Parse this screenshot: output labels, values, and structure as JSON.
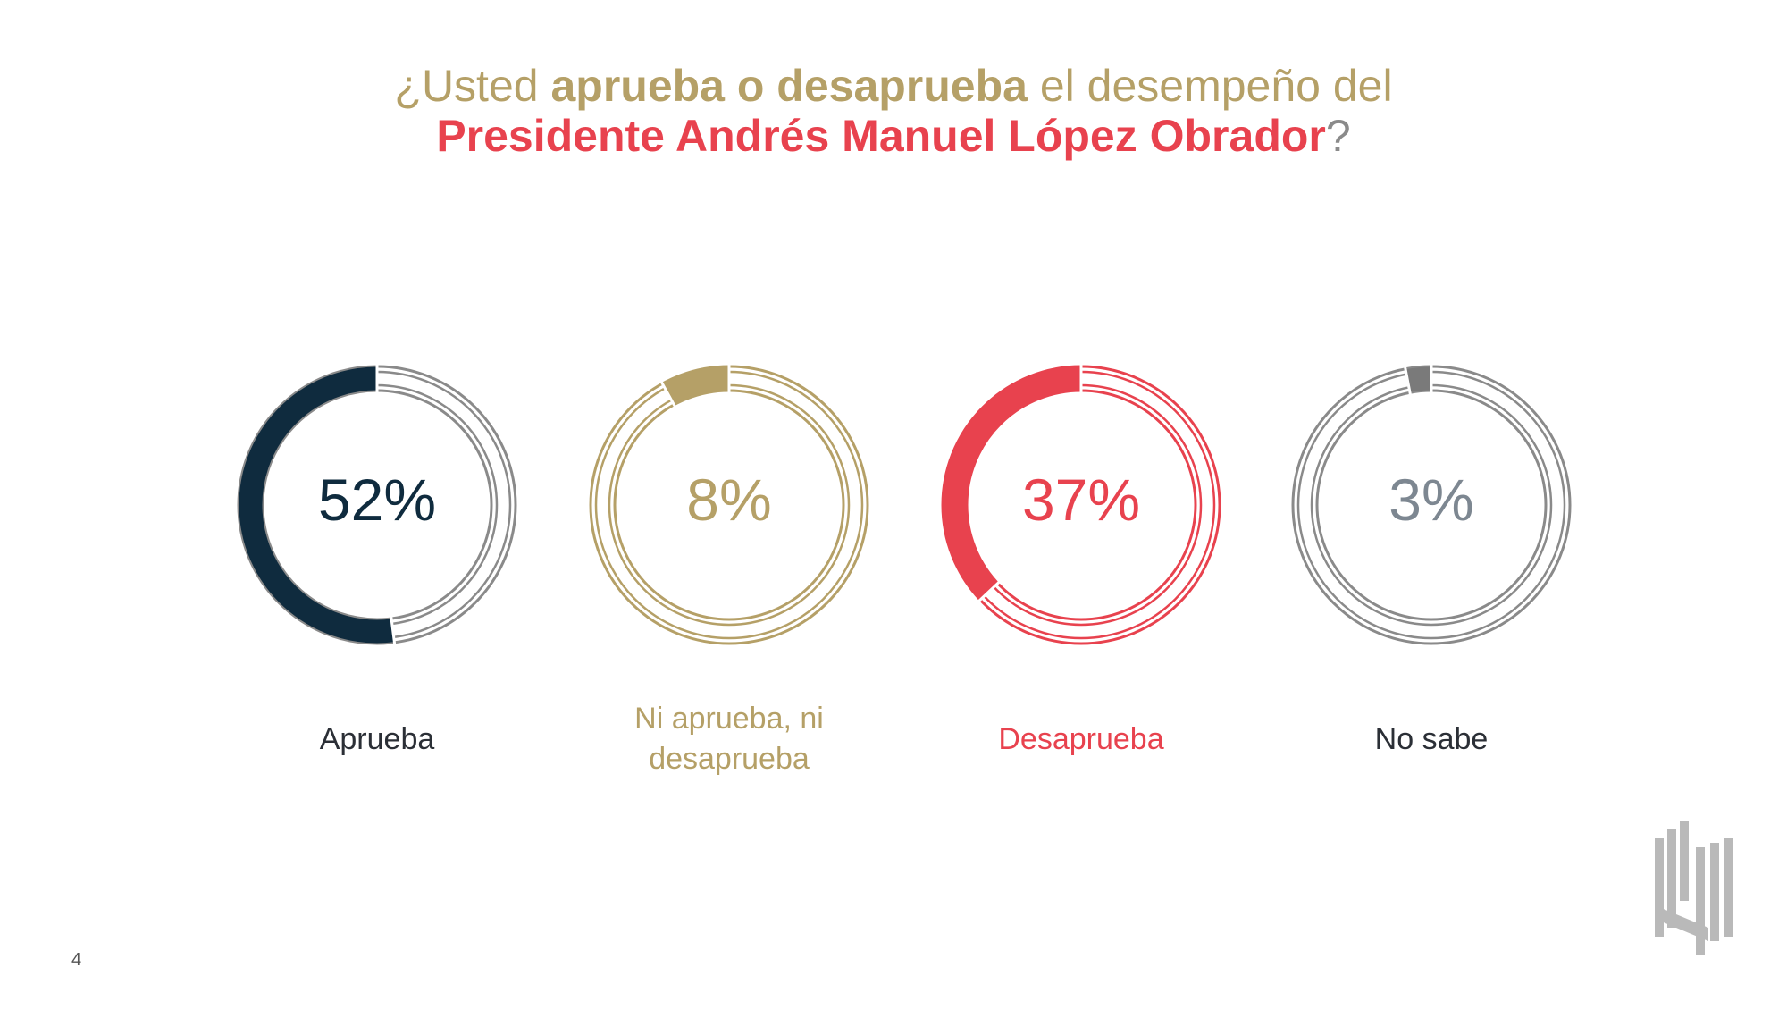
{
  "title": {
    "line1_pre": "¿Usted ",
    "line1_bold": "aprueba o desaprueba",
    "line1_post": " el desempeño del",
    "line2_bold": "Presidente Andrés Manuel López Obrador",
    "line2_post": "?"
  },
  "chart_data": {
    "type": "pie",
    "title": "¿Usted aprueba o desaprueba el desempeño del Presidente Andrés Manuel López Obrador?",
    "categories": [
      "Aprueba",
      "Ni aprueba, ni desaprueba",
      "Desaprueba",
      "No sabe"
    ],
    "values": [
      52,
      8,
      37,
      3
    ],
    "value_labels": [
      "52%",
      "8%",
      "37%",
      "3%"
    ],
    "label_lines": [
      [
        "Aprueba"
      ],
      [
        "Ni aprueba, ni",
        "desaprueba"
      ],
      [
        "Desaprueba"
      ],
      [
        "No sabe"
      ]
    ],
    "colors": [
      "#0f2b3e",
      "#b5a067",
      "#e8424e",
      "#7a7a7a"
    ],
    "ring_colors": [
      "#8a8a8a",
      "#b5a067",
      "#e8424e",
      "#8a8a8a"
    ],
    "pct_colors": [
      "#0f2b3e",
      "#b5a067",
      "#e8424e",
      "#7d8791"
    ],
    "label_colors": [
      "#2b2f36",
      "#b5a067",
      "#e8424e",
      "#2b2f36"
    ]
  },
  "page_number": "4"
}
